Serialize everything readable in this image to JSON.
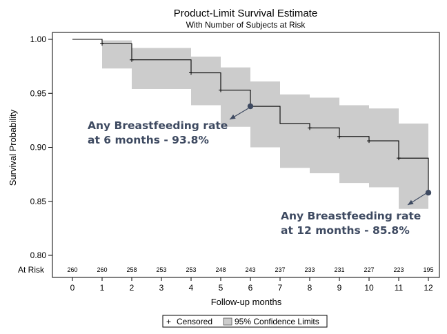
{
  "chart_data": {
    "type": "line",
    "title": "Product-Limit Survival Estimate",
    "subtitle": "With Number of Subjects at Risk",
    "xlabel": "Follow-up months",
    "ylabel": "Survival Probability",
    "xlim": [
      0,
      12
    ],
    "ylim": [
      0.8,
      1.0
    ],
    "x_ticks": [
      0,
      1,
      2,
      3,
      4,
      5,
      6,
      7,
      8,
      9,
      10,
      11,
      12
    ],
    "y_ticks": [
      0.8,
      0.85,
      0.9,
      0.95,
      1.0
    ],
    "y_tick_labels": [
      "0.80",
      "0.85",
      "0.90",
      "0.95",
      "1.00"
    ],
    "grid": false,
    "survival_steps": [
      {
        "x": 0,
        "y": 1.0
      },
      {
        "x": 1,
        "y": 0.996
      },
      {
        "x": 2,
        "y": 0.981
      },
      {
        "x": 4,
        "y": 0.969
      },
      {
        "x": 5,
        "y": 0.953
      },
      {
        "x": 6,
        "y": 0.938
      },
      {
        "x": 7,
        "y": 0.922
      },
      {
        "x": 8,
        "y": 0.918
      },
      {
        "x": 9,
        "y": 0.91
      },
      {
        "x": 10,
        "y": 0.906
      },
      {
        "x": 11,
        "y": 0.89
      },
      {
        "x": 12,
        "y": 0.858
      }
    ],
    "confidence_band": [
      {
        "x": 1,
        "lower": 0.973,
        "upper": 0.999
      },
      {
        "x": 2,
        "lower": 0.954,
        "upper": 0.992
      },
      {
        "x": 4,
        "lower": 0.939,
        "upper": 0.984
      },
      {
        "x": 5,
        "lower": 0.919,
        "upper": 0.974
      },
      {
        "x": 6,
        "lower": 0.9,
        "upper": 0.961
      },
      {
        "x": 7,
        "lower": 0.881,
        "upper": 0.949
      },
      {
        "x": 8,
        "lower": 0.876,
        "upper": 0.946
      },
      {
        "x": 9,
        "lower": 0.867,
        "upper": 0.939
      },
      {
        "x": 10,
        "lower": 0.863,
        "upper": 0.936
      },
      {
        "x": 11,
        "lower": 0.843,
        "upper": 0.922
      }
    ],
    "censored_marks": [
      {
        "x": 1,
        "y": 0.996
      },
      {
        "x": 2,
        "y": 0.981
      },
      {
        "x": 4,
        "y": 0.969
      },
      {
        "x": 5,
        "y": 0.953
      },
      {
        "x": 8,
        "y": 0.918
      },
      {
        "x": 9,
        "y": 0.91
      },
      {
        "x": 10,
        "y": 0.906
      },
      {
        "x": 11,
        "y": 0.89
      }
    ],
    "at_risk": {
      "label": "At Risk",
      "x": [
        0,
        1,
        2,
        3,
        4,
        5,
        6,
        7,
        8,
        9,
        10,
        11,
        12
      ],
      "values": [
        "260",
        "260",
        "258",
        "253",
        "253",
        "248",
        "243",
        "237",
        "233",
        "231",
        "227",
        "223",
        "195"
      ]
    },
    "annotations": [
      {
        "lines": [
          "Any Breastfeeding rate",
          "at 6 months - 93.8%"
        ],
        "point": {
          "x": 6,
          "y": 0.938
        }
      },
      {
        "lines": [
          "Any Breastfeeding rate",
          "at 12 months - 85.8%"
        ],
        "point": {
          "x": 12,
          "y": 0.858
        }
      }
    ],
    "legend": {
      "placement": "bottom",
      "entries": [
        {
          "symbol": "+",
          "label": "Censored"
        },
        {
          "symbol": "box",
          "label": "95% Confidence Limits"
        }
      ]
    },
    "colors": {
      "band": "#cccccc",
      "line": "#000000",
      "annotation": "#3e4a61"
    }
  }
}
